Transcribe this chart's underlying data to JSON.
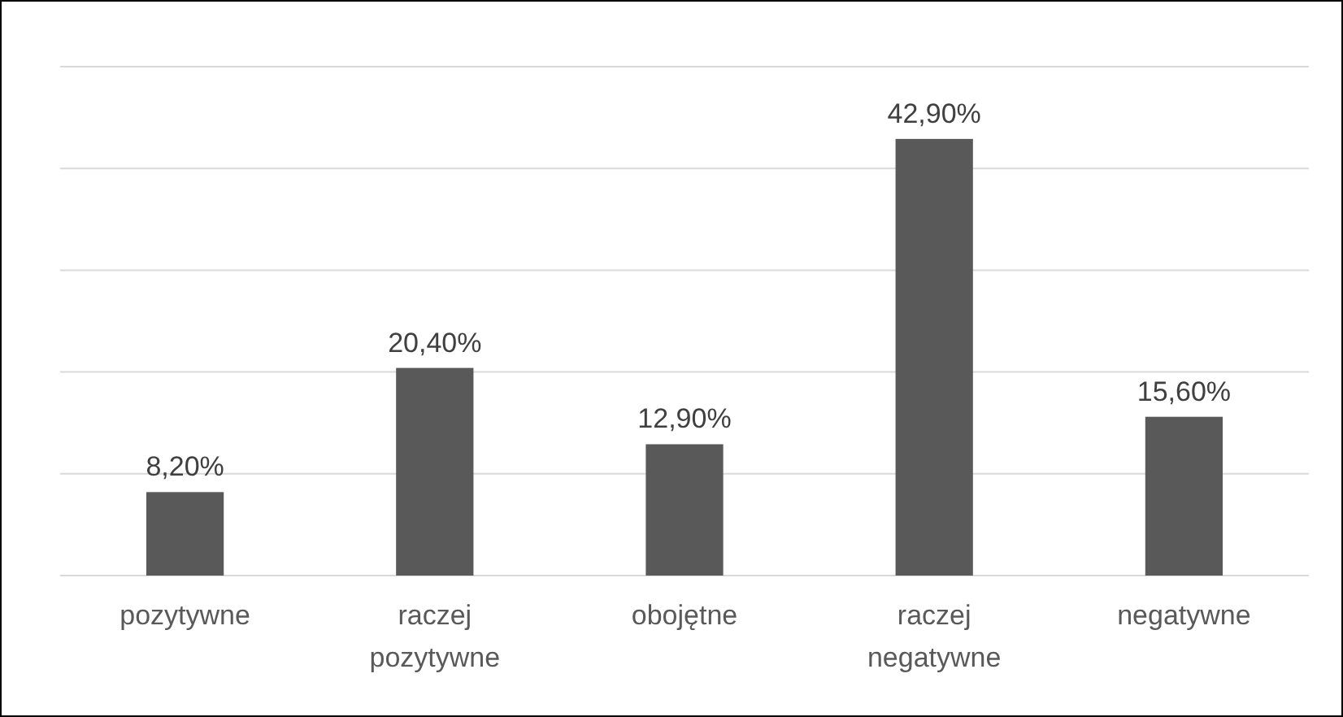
{
  "chart_data": {
    "type": "bar",
    "categories": [
      "pozytywne",
      "raczej pozytywne",
      "obojętne",
      "raczej negatywne",
      "negatywne"
    ],
    "values": [
      8.2,
      20.4,
      12.9,
      42.9,
      15.6
    ],
    "value_labels": [
      "8,20%",
      "20,40%",
      "12,90%",
      "42,90%",
      "15,60%"
    ],
    "color": "#595959",
    "ylim": [
      0,
      50
    ],
    "yticks": [
      {
        "value": 0,
        "label": null
      },
      {
        "value": 10,
        "label": null
      },
      {
        "value": 20,
        "label": null
      },
      {
        "value": 30,
        "label": null
      },
      {
        "value": 40,
        "label": null
      },
      {
        "value": 50,
        "label": null
      }
    ],
    "grid": "y",
    "tick_labels": "x"
  }
}
